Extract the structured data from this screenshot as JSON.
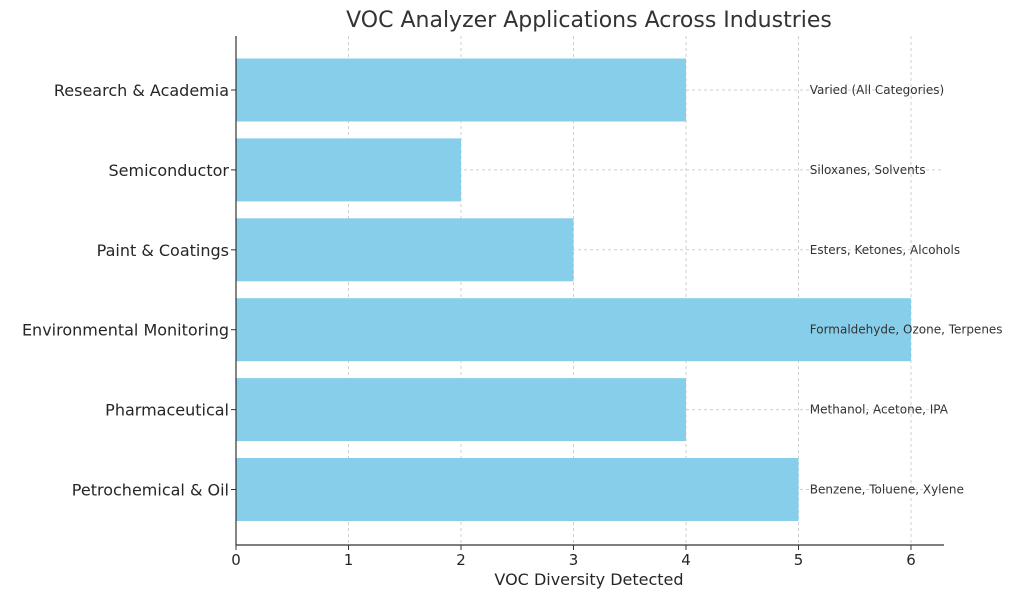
{
  "chart_data": {
    "type": "bar",
    "orientation": "horizontal",
    "title": "VOC Analyzer Applications Across Industries",
    "xlabel": "VOC Diversity Detected",
    "ylabel": "",
    "xlim": [
      0,
      6.3
    ],
    "xticks": [
      0,
      1,
      2,
      3,
      4,
      5,
      6
    ],
    "grid": true,
    "bar_color": "#87CEEB",
    "categories": [
      "Petrochemical & Oil",
      "Pharmaceutical",
      "Environmental Monitoring",
      "Paint & Coatings",
      "Semiconductor",
      "Research & Academia"
    ],
    "values": [
      5,
      4,
      6,
      3,
      2,
      4
    ],
    "annotations": [
      "Benzene, Toluene, Xylene",
      "Methanol, Acetone, IPA",
      "Formaldehyde, Ozone, Terpenes",
      "Esters, Ketones, Alcohols",
      "Siloxanes, Solvents",
      "Varied (All Categories)"
    ],
    "annotation_x": 5.1
  }
}
